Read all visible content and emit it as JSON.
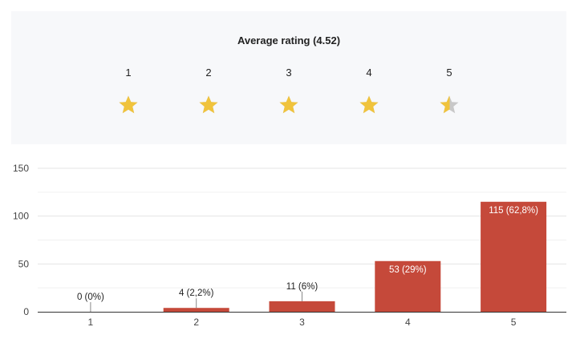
{
  "rating_panel": {
    "title": "Average rating (4.52)",
    "average": 4.52,
    "star_labels": [
      "1",
      "2",
      "3",
      "4",
      "5"
    ],
    "star_fill_fractions": [
      1,
      1,
      1,
      1,
      0.52
    ],
    "star_color": "#f0c33c",
    "star_empty_color": "#c8c8c8"
  },
  "chart_data": {
    "type": "bar",
    "title": "",
    "xlabel": "",
    "ylabel": "",
    "categories": [
      "1",
      "2",
      "3",
      "4",
      "5"
    ],
    "values": [
      0,
      4,
      11,
      53,
      115
    ],
    "data_labels": [
      "0 (0%)",
      "4 (2,2%)",
      "11 (6%)",
      "53 (29%)",
      "115 (62,8%)"
    ],
    "ylim": [
      0,
      150
    ],
    "yticks": [
      0,
      50,
      100,
      150
    ],
    "grid": true,
    "bar_color": "#c5493a"
  }
}
